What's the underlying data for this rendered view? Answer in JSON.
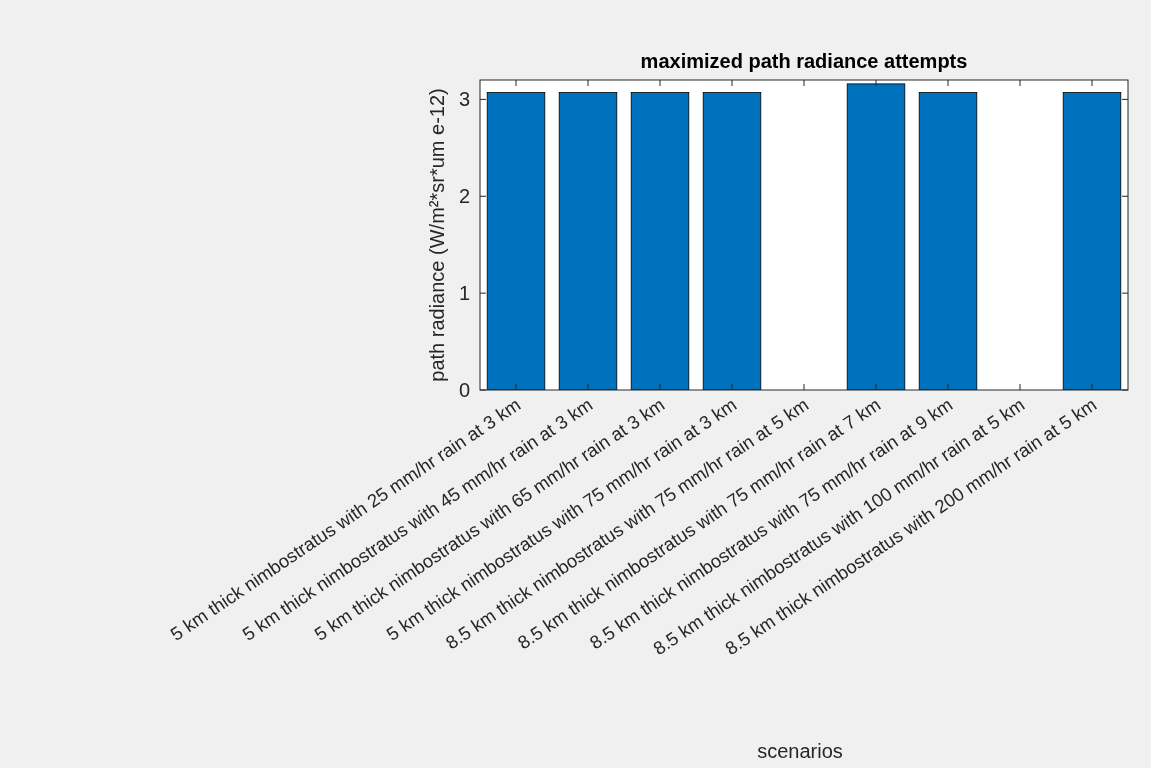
{
  "chart_data": {
    "type": "bar",
    "title": "maximized path radiance attempts",
    "xlabel": "scenarios",
    "ylabel": "path radiance (W/m²*sr*um  e-12)",
    "categories": [
      "5 km thick nimbostratus with 25 mm/hr rain at 3 km",
      "5 km thick nimbostratus with 45 mm/hr rain at 3 km",
      "5 km thick nimbostratus with 65 mm/hr rain at 3 km",
      "5 km thick nimbostratus with 75 mm/hr rain at 3 km",
      "8.5 km thick nimbostratus with 75 mm/hr rain at 5 km",
      "8.5 km thick nimbostratus with 75 mm/hr rain at 7 km",
      "8.5 km thick nimbostratus with 75 mm/hr rain at 9 km",
      "8.5 km thick nimbostratus with 100 mm/hr rain at 5 km",
      "8.5 km thick nimbostratus with 200 mm/hr rain at 5 km"
    ],
    "values": [
      3.07,
      3.07,
      3.07,
      3.07,
      null,
      3.16,
      3.07,
      null,
      3.07
    ],
    "color": "#0072bd",
    "ylim": [
      0,
      3.2
    ],
    "yticks": [
      0,
      1,
      2,
      3
    ],
    "grid": false
  }
}
